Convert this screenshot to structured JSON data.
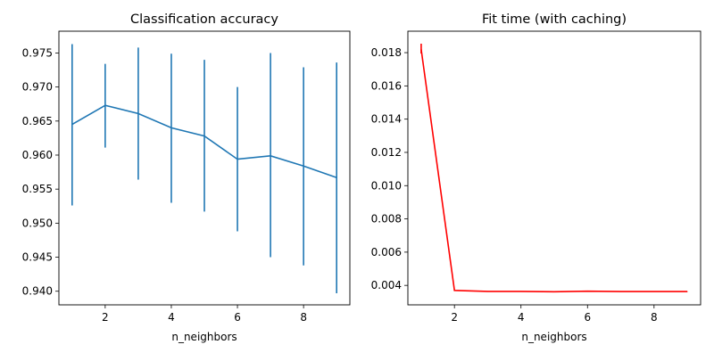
{
  "chart_data": [
    {
      "type": "line",
      "title": "Classification accuracy",
      "xlabel": "n_neighbors",
      "ylabel": "",
      "x": [
        1,
        2,
        3,
        4,
        5,
        6,
        7,
        8,
        9
      ],
      "series": [
        {
          "values": [
            0.9645,
            0.9673,
            0.9661,
            0.964,
            0.9628,
            0.9594,
            0.9599,
            0.9584,
            0.9567
          ],
          "error_low": [
            0.9526,
            0.9611,
            0.9564,
            0.953,
            0.9517,
            0.9488,
            0.945,
            0.9438,
            0.9397
          ],
          "error_high": [
            0.9763,
            0.9734,
            0.9758,
            0.9749,
            0.974,
            0.97,
            0.975,
            0.9729,
            0.9736
          ],
          "color": "#1f77b4"
        }
      ],
      "xlim": [
        0.6,
        9.4
      ],
      "ylim": [
        0.938,
        0.9782
      ],
      "xticks": [
        "2",
        "4",
        "6",
        "8"
      ],
      "xtick_values": [
        2,
        4,
        6,
        8
      ],
      "yticks": [
        "0.940",
        "0.945",
        "0.950",
        "0.955",
        "0.960",
        "0.965",
        "0.970",
        "0.975"
      ],
      "ytick_values": [
        0.94,
        0.945,
        0.95,
        0.955,
        0.96,
        0.965,
        0.97,
        0.975
      ],
      "grid": false
    },
    {
      "type": "line",
      "title": "Fit time (with caching)",
      "xlabel": "n_neighbors",
      "ylabel": "",
      "x": [
        1,
        2,
        3,
        4,
        5,
        6,
        7,
        8,
        9
      ],
      "series": [
        {
          "values": [
            0.0182,
            0.0037,
            0.00364,
            0.00364,
            0.00362,
            0.00365,
            0.00363,
            0.00363,
            0.00363
          ],
          "error_low": [
            0.01795,
            0.00368,
            0.00363,
            0.00363,
            0.00361,
            0.00364,
            0.00362,
            0.00362,
            0.00362
          ],
          "error_high": [
            0.01854,
            0.00372,
            0.00365,
            0.00365,
            0.00363,
            0.00366,
            0.00364,
            0.00364,
            0.00364
          ],
          "color": "#ff0000"
        }
      ],
      "xlim": [
        0.6,
        9.4
      ],
      "ylim": [
        0.00283,
        0.01929
      ],
      "xticks": [
        "2",
        "4",
        "6",
        "8"
      ],
      "xtick_values": [
        2,
        4,
        6,
        8
      ],
      "yticks": [
        "0.004",
        "0.006",
        "0.008",
        "0.010",
        "0.012",
        "0.014",
        "0.016",
        "0.018"
      ],
      "ytick_values": [
        0.004,
        0.006,
        0.008,
        0.01,
        0.012,
        0.014,
        0.016,
        0.018
      ],
      "grid": false
    }
  ]
}
